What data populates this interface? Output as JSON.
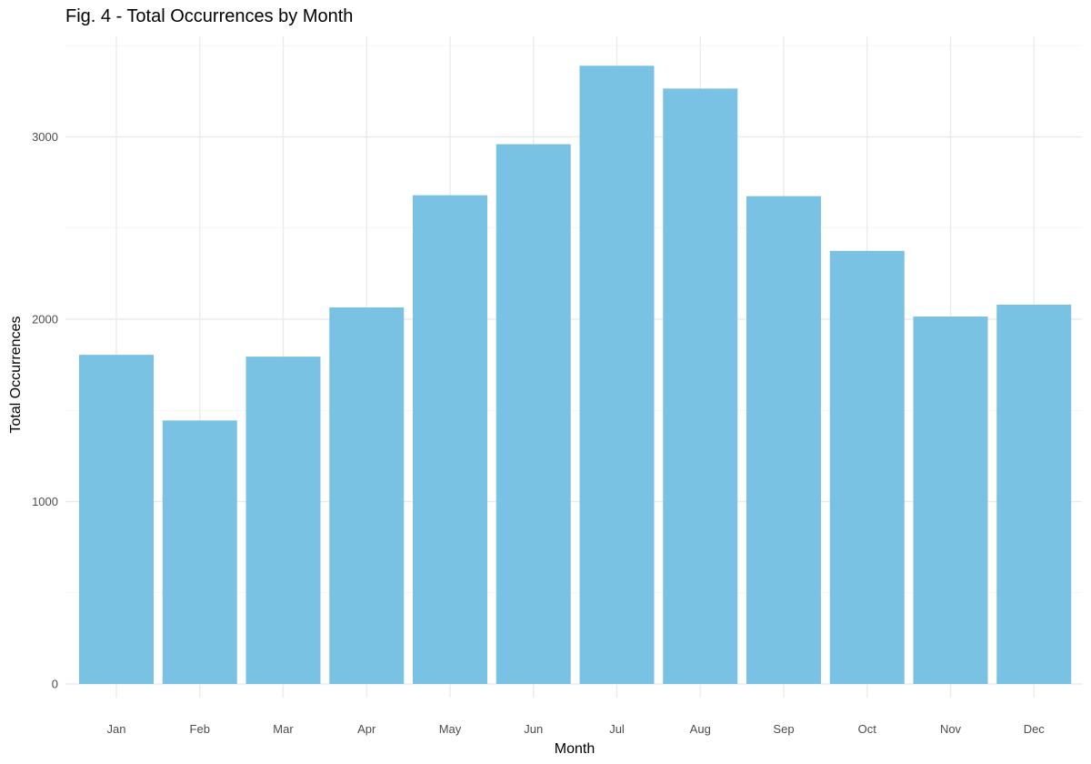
{
  "chart_data": {
    "type": "bar",
    "title": "Fig. 4 - Total Occurrences by Month",
    "xlabel": "Month",
    "ylabel": "Total Occurrences",
    "categories": [
      "Jan",
      "Feb",
      "Mar",
      "Apr",
      "May",
      "Jun",
      "Jul",
      "Aug",
      "Sep",
      "Oct",
      "Nov",
      "Dec"
    ],
    "values": [
      1805,
      1445,
      1795,
      2065,
      2680,
      2960,
      3390,
      3265,
      2675,
      2375,
      2015,
      2080
    ],
    "ylim": [
      0,
      3500
    ],
    "y_ticks": [
      0,
      1000,
      2000,
      3000
    ],
    "y_tick_labels": [
      "0",
      "1000",
      "2000",
      "3000"
    ],
    "grid": true,
    "legend": "none",
    "bar_color": "#7AC2E4",
    "grid_color": "#EBEBEB"
  }
}
